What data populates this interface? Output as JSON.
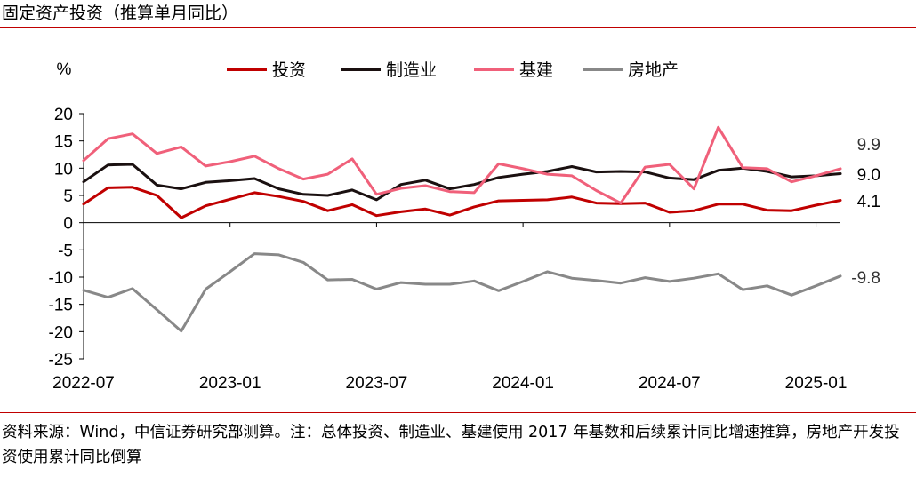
{
  "title": "固定资产投资（推算单月同比）",
  "source_note": "资料来源：Wind，中信证券研究部测算。注：总体投资、制造业、基建使用 2017 年基数和后续累计同比增速推算，房地产开发投资使用累计同比倒算",
  "chart_data": {
    "type": "line",
    "unit_label": "%",
    "x": [
      "2022-07",
      "2022-08",
      "2022-09",
      "2022-10",
      "2022-11",
      "2022-12",
      "2023-01",
      "2023-02",
      "2023-03",
      "2023-04",
      "2023-05",
      "2023-06",
      "2023-07",
      "2023-08",
      "2023-09",
      "2023-10",
      "2023-11",
      "2023-12",
      "2024-01",
      "2024-02",
      "2024-03",
      "2024-04",
      "2024-05",
      "2024-06",
      "2024-07",
      "2024-08",
      "2024-09",
      "2024-10",
      "2024-11",
      "2024-12",
      "2025-01",
      "2025-02"
    ],
    "x_tick_labels": [
      "2022-07",
      "2023-01",
      "2023-07",
      "2024-01",
      "2024-07",
      "2025-01"
    ],
    "yticks": [
      20,
      15,
      10,
      5,
      0,
      -5,
      -10,
      -15,
      -20,
      -25
    ],
    "ylim": [
      -25,
      20
    ],
    "legend_position": "top",
    "series": [
      {
        "name": "投资",
        "color": "#c00000",
        "end_label": "4.1",
        "values": [
          3.4,
          6.4,
          6.5,
          5.0,
          0.9,
          3.1,
          4.3,
          5.5,
          4.8,
          3.9,
          2.2,
          3.3,
          1.3,
          2.0,
          2.5,
          1.4,
          2.9,
          4.0,
          4.1,
          4.2,
          4.7,
          3.6,
          3.5,
          3.6,
          1.9,
          2.2,
          3.4,
          3.4,
          2.3,
          2.2,
          3.2,
          4.1
        ]
      },
      {
        "name": "制造业",
        "color": "#1a1010",
        "end_label": "9.0",
        "values": [
          7.5,
          10.6,
          10.7,
          6.9,
          6.2,
          7.4,
          7.7,
          8.1,
          6.2,
          5.2,
          5.0,
          6.0,
          4.2,
          7.0,
          7.8,
          6.2,
          7.0,
          8.3,
          8.9,
          9.4,
          10.3,
          9.3,
          9.4,
          9.3,
          8.2,
          7.9,
          9.6,
          10.0,
          9.4,
          8.4,
          8.6,
          9.0
        ]
      },
      {
        "name": "基建",
        "color": "#f0607a",
        "end_label": "9.9",
        "values": [
          11.4,
          15.4,
          16.3,
          12.7,
          13.9,
          10.4,
          11.2,
          12.2,
          9.9,
          8.0,
          8.9,
          11.7,
          5.2,
          6.3,
          6.8,
          5.7,
          5.5,
          10.8,
          9.9,
          8.9,
          8.6,
          5.9,
          3.6,
          10.2,
          10.7,
          6.2,
          17.5,
          10.1,
          9.9,
          7.5,
          8.6,
          9.9
        ]
      },
      {
        "name": "房地产",
        "color": "#888888",
        "end_label": "-9.8",
        "values": [
          -12.4,
          -13.7,
          -12.1,
          -16.0,
          -19.9,
          -12.2,
          -9.0,
          -5.7,
          -5.9,
          -7.3,
          -10.5,
          -10.4,
          -12.2,
          -11.0,
          -11.3,
          -11.3,
          -10.7,
          -12.5,
          -10.8,
          -9.0,
          -10.2,
          -10.6,
          -11.1,
          -10.1,
          -10.8,
          -10.2,
          -9.4,
          -12.3,
          -11.6,
          -13.3,
          -11.6,
          -9.8
        ]
      }
    ]
  }
}
